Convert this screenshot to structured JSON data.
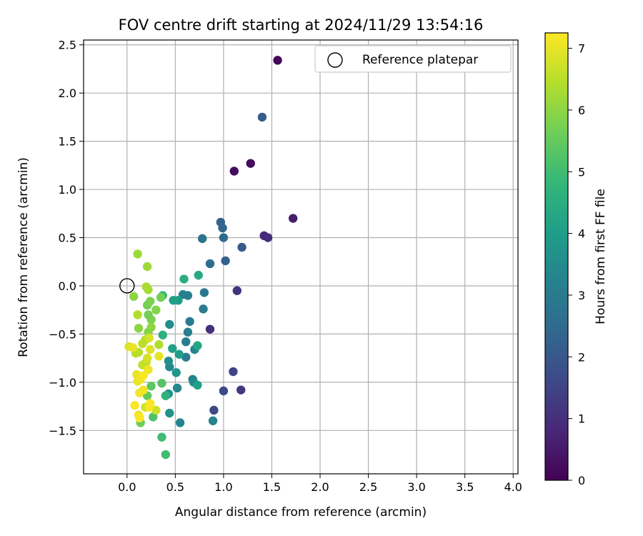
{
  "chart_data": {
    "type": "scatter",
    "title": "FOV centre drift starting at 2024/11/29 13:54:16",
    "xlabel": "Angular distance from reference (arcmin)",
    "ylabel": "Rotation from reference (arcmin)",
    "xlim": [
      -0.45,
      4.05
    ],
    "ylim": [
      -1.95,
      2.55
    ],
    "xticks": [
      0.0,
      0.5,
      1.0,
      1.5,
      2.0,
      2.5,
      3.0,
      3.5,
      4.0
    ],
    "xtick_labels": [
      "0.0",
      "0.5",
      "1.0",
      "1.5",
      "2.0",
      "2.5",
      "3.0",
      "3.5",
      "4.0"
    ],
    "yticks": [
      -1.5,
      -1.0,
      -0.5,
      0.0,
      0.5,
      1.0,
      1.5,
      2.0,
      2.5
    ],
    "ytick_labels": [
      "−1.5",
      "−1.0",
      "−0.5",
      "0.0",
      "0.5",
      "1.0",
      "1.5",
      "2.0",
      "2.5"
    ],
    "grid": true,
    "legend": {
      "placement": "top-right",
      "entries": [
        "Reference platepar"
      ]
    },
    "reference_point": {
      "x": 0.0,
      "y": 0.0,
      "label": "Reference platepar"
    },
    "colorbar": {
      "label": "Hours from first FF file",
      "colormap": "viridis",
      "range": [
        0,
        7.25
      ],
      "ticks": [
        0,
        1,
        2,
        3,
        4,
        5,
        6,
        7
      ],
      "tick_labels": [
        "0",
        "1",
        "2",
        "3",
        "4",
        "5",
        "6",
        "7"
      ],
      "stops": [
        "#440154",
        "#482878",
        "#3e4989",
        "#31688e",
        "#26828e",
        "#1f9e89",
        "#35b779",
        "#6ece58",
        "#b5de2b",
        "#fde725"
      ]
    },
    "points": [
      {
        "x": 1.56,
        "y": 2.34,
        "c": 0.1
      },
      {
        "x": 1.11,
        "y": 1.19,
        "c": 0.2
      },
      {
        "x": 1.28,
        "y": 1.27,
        "c": 0.2
      },
      {
        "x": 1.72,
        "y": 0.7,
        "c": 0.6
      },
      {
        "x": 1.42,
        "y": 0.52,
        "c": 0.8
      },
      {
        "x": 1.46,
        "y": 0.5,
        "c": 0.9
      },
      {
        "x": 0.86,
        "y": -0.45,
        "c": 1.0
      },
      {
        "x": 1.14,
        "y": -0.05,
        "c": 1.1
      },
      {
        "x": 1.18,
        "y": -1.08,
        "c": 1.2
      },
      {
        "x": 1.1,
        "y": -0.89,
        "c": 1.5
      },
      {
        "x": 1.0,
        "y": -1.09,
        "c": 1.6
      },
      {
        "x": 0.9,
        "y": -1.29,
        "c": 1.6
      },
      {
        "x": 1.4,
        "y": 1.75,
        "c": 2.1
      },
      {
        "x": 1.19,
        "y": 0.4,
        "c": 2.1
      },
      {
        "x": 1.02,
        "y": 0.26,
        "c": 2.2
      },
      {
        "x": 0.97,
        "y": 0.66,
        "c": 2.3
      },
      {
        "x": 0.99,
        "y": 0.6,
        "c": 2.4
      },
      {
        "x": 1.0,
        "y": 0.5,
        "c": 2.5
      },
      {
        "x": 0.86,
        "y": 0.23,
        "c": 2.6
      },
      {
        "x": 0.78,
        "y": 0.49,
        "c": 2.8
      },
      {
        "x": 0.8,
        "y": -0.07,
        "c": 2.9
      },
      {
        "x": 0.79,
        "y": -0.24,
        "c": 3.0
      },
      {
        "x": 0.63,
        "y": -0.1,
        "c": 3.1
      },
      {
        "x": 0.58,
        "y": -0.09,
        "c": 3.2
      },
      {
        "x": 0.65,
        "y": -0.37,
        "c": 3.0
      },
      {
        "x": 0.63,
        "y": -0.48,
        "c": 3.1
      },
      {
        "x": 0.61,
        "y": -0.58,
        "c": 3.0
      },
      {
        "x": 0.7,
        "y": -0.66,
        "c": 3.3
      },
      {
        "x": 0.61,
        "y": -0.74,
        "c": 3.1
      },
      {
        "x": 0.68,
        "y": -0.97,
        "c": 3.2
      },
      {
        "x": 0.69,
        "y": -1.0,
        "c": 3.4
      },
      {
        "x": 0.89,
        "y": -1.4,
        "c": 3.3
      },
      {
        "x": 0.55,
        "y": -1.42,
        "c": 3.3
      },
      {
        "x": 0.52,
        "y": -1.06,
        "c": 3.4
      },
      {
        "x": 0.44,
        "y": -0.4,
        "c": 3.5
      },
      {
        "x": 0.44,
        "y": -0.84,
        "c": 3.4
      },
      {
        "x": 0.43,
        "y": -0.78,
        "c": 3.6
      },
      {
        "x": 0.43,
        "y": -1.12,
        "c": 3.7
      },
      {
        "x": 0.44,
        "y": -1.32,
        "c": 3.7
      },
      {
        "x": 0.51,
        "y": -0.9,
        "c": 3.8
      },
      {
        "x": 0.53,
        "y": -0.15,
        "c": 3.9
      },
      {
        "x": 0.48,
        "y": -0.15,
        "c": 4.1
      },
      {
        "x": 0.47,
        "y": -0.65,
        "c": 4.1
      },
      {
        "x": 0.54,
        "y": -0.71,
        "c": 4.0
      },
      {
        "x": 0.73,
        "y": -1.03,
        "c": 4.1
      },
      {
        "x": 0.73,
        "y": -0.62,
        "c": 4.3
      },
      {
        "x": 0.59,
        "y": 0.07,
        "c": 4.5
      },
      {
        "x": 0.74,
        "y": 0.11,
        "c": 4.4
      },
      {
        "x": 0.37,
        "y": -0.51,
        "c": 4.6
      },
      {
        "x": 0.4,
        "y": -1.14,
        "c": 4.6
      },
      {
        "x": 0.37,
        "y": -0.1,
        "c": 4.9
      },
      {
        "x": 0.36,
        "y": -1.57,
        "c": 5.0
      },
      {
        "x": 0.4,
        "y": -1.75,
        "c": 5.0
      },
      {
        "x": 0.27,
        "y": -1.36,
        "c": 5.2
      },
      {
        "x": 0.36,
        "y": -1.01,
        "c": 5.3
      },
      {
        "x": 0.25,
        "y": -1.04,
        "c": 5.4
      },
      {
        "x": 0.21,
        "y": -1.14,
        "c": 5.5
      },
      {
        "x": 0.14,
        "y": -1.42,
        "c": 5.6
      },
      {
        "x": 0.35,
        "y": -0.12,
        "c": 5.7
      },
      {
        "x": 0.21,
        "y": -0.2,
        "c": 5.7
      },
      {
        "x": 0.24,
        "y": -0.16,
        "c": 5.8
      },
      {
        "x": 0.3,
        "y": -0.25,
        "c": 5.9
      },
      {
        "x": 0.25,
        "y": -0.35,
        "c": 5.8
      },
      {
        "x": 0.22,
        "y": -0.3,
        "c": 5.7
      },
      {
        "x": 0.25,
        "y": -0.43,
        "c": 6.0
      },
      {
        "x": 0.22,
        "y": -0.48,
        "c": 5.9
      },
      {
        "x": 0.12,
        "y": -0.44,
        "c": 6.0
      },
      {
        "x": 0.07,
        "y": -0.11,
        "c": 6.0
      },
      {
        "x": 0.11,
        "y": 0.33,
        "c": 6.2
      },
      {
        "x": 0.21,
        "y": 0.2,
        "c": 6.2
      },
      {
        "x": 0.2,
        "y": -0.01,
        "c": 6.3
      },
      {
        "x": 0.22,
        "y": -0.04,
        "c": 6.3
      },
      {
        "x": 0.11,
        "y": -0.3,
        "c": 6.4
      },
      {
        "x": 0.19,
        "y": -0.56,
        "c": 6.4
      },
      {
        "x": 0.16,
        "y": -0.6,
        "c": 6.5
      },
      {
        "x": 0.33,
        "y": -0.61,
        "c": 6.4
      },
      {
        "x": 0.12,
        "y": -0.69,
        "c": 6.5
      },
      {
        "x": 0.09,
        "y": -0.7,
        "c": 6.5
      },
      {
        "x": 0.16,
        "y": -0.82,
        "c": 6.6
      },
      {
        "x": 0.2,
        "y": -0.79,
        "c": 6.6
      },
      {
        "x": 0.3,
        "y": -1.29,
        "c": 6.7
      },
      {
        "x": 0.19,
        "y": -1.26,
        "c": 6.7
      },
      {
        "x": 0.23,
        "y": -0.54,
        "c": 6.8
      },
      {
        "x": 0.21,
        "y": -0.75,
        "c": 6.8
      },
      {
        "x": 0.24,
        "y": -0.66,
        "c": 6.9
      },
      {
        "x": 0.33,
        "y": -0.73,
        "c": 7.0
      },
      {
        "x": 0.02,
        "y": -0.63,
        "c": 6.9
      },
      {
        "x": 0.06,
        "y": -0.64,
        "c": 7.0
      },
      {
        "x": 0.1,
        "y": -0.92,
        "c": 7.0
      },
      {
        "x": 0.11,
        "y": -0.99,
        "c": 7.0
      },
      {
        "x": 0.13,
        "y": -1.11,
        "c": 7.1
      },
      {
        "x": 0.17,
        "y": -1.08,
        "c": 7.1
      },
      {
        "x": 0.14,
        "y": -0.97,
        "c": 7.1
      },
      {
        "x": 0.17,
        "y": -0.93,
        "c": 7.2
      },
      {
        "x": 0.22,
        "y": -0.87,
        "c": 7.1
      },
      {
        "x": 0.24,
        "y": -1.22,
        "c": 7.2
      },
      {
        "x": 0.23,
        "y": -1.26,
        "c": 7.2
      },
      {
        "x": 0.08,
        "y": -1.24,
        "c": 7.2
      },
      {
        "x": 0.12,
        "y": -1.34,
        "c": 7.1
      },
      {
        "x": 0.13,
        "y": -1.37,
        "c": 7.2
      }
    ]
  }
}
